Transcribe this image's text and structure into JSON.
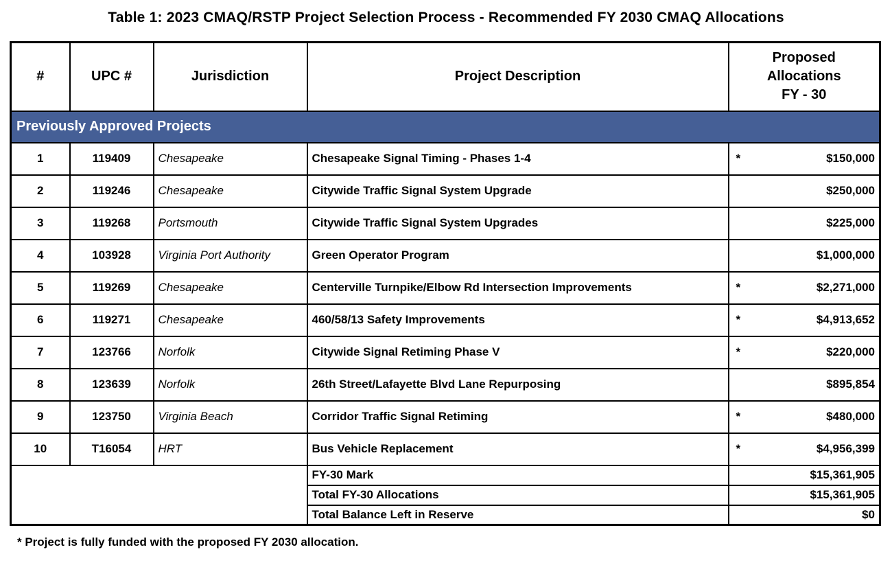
{
  "title": "Table 1: 2023 CMAQ/RSTP Project Selection Process - Recommended FY 2030 CMAQ Allocations",
  "colors": {
    "section_band_bg": "#455F96",
    "section_band_text": "#FFFFFF",
    "table_border": "#000000",
    "page_bg": "#FFFFFF"
  },
  "table": {
    "columns": {
      "num": "#",
      "upc": "UPC #",
      "jurisdiction": "Jurisdiction",
      "description": "Project Description",
      "alloc_line1": "Proposed",
      "alloc_line2": "Allocations",
      "alloc_line3": "FY - 30"
    },
    "section_header": "Previously Approved Projects",
    "rows": [
      {
        "num": "1",
        "upc": "119409",
        "jurisdiction": "Chesapeake",
        "description": "Chesapeake Signal Timing - Phases 1-4",
        "note": "*",
        "amount": "$150,000"
      },
      {
        "num": "2",
        "upc": "119246",
        "jurisdiction": "Chesapeake",
        "description": "Citywide Traffic Signal System Upgrade",
        "note": "",
        "amount": "$250,000"
      },
      {
        "num": "3",
        "upc": "119268",
        "jurisdiction": "Portsmouth",
        "description": "Citywide Traffic Signal System Upgrades",
        "note": "",
        "amount": "$225,000"
      },
      {
        "num": "4",
        "upc": "103928",
        "jurisdiction": "Virginia Port Authority",
        "description": "Green Operator Program",
        "note": "",
        "amount": "$1,000,000"
      },
      {
        "num": "5",
        "upc": "119269",
        "jurisdiction": "Chesapeake",
        "description": "Centerville Turnpike/Elbow Rd Intersection Improvements",
        "note": "*",
        "amount": "$2,271,000"
      },
      {
        "num": "6",
        "upc": "119271",
        "jurisdiction": "Chesapeake",
        "description": "460/58/13 Safety Improvements",
        "note": "*",
        "amount": "$4,913,652"
      },
      {
        "num": "7",
        "upc": "123766",
        "jurisdiction": "Norfolk",
        "description": "Citywide Signal Retiming Phase V",
        "note": "*",
        "amount": "$220,000"
      },
      {
        "num": "8",
        "upc": "123639",
        "jurisdiction": "Norfolk",
        "description": "26th Street/Lafayette Blvd Lane Repurposing",
        "note": "",
        "amount": "$895,854"
      },
      {
        "num": "9",
        "upc": "123750",
        "jurisdiction": "Virginia Beach",
        "description": "Corridor Traffic Signal Retiming",
        "note": "*",
        "amount": "$480,000"
      },
      {
        "num": "10",
        "upc": "T16054",
        "jurisdiction": "HRT",
        "description": "Bus Vehicle Replacement",
        "note": "*",
        "amount": "$4,956,399"
      }
    ],
    "summary_rows": [
      {
        "label": "FY-30 Mark",
        "value": "$15,361,905"
      },
      {
        "label": "Total FY-30 Allocations",
        "value": "$15,361,905"
      },
      {
        "label": "Total Balance Left in Reserve",
        "value": "$0"
      }
    ]
  },
  "footnote": "* Project is fully funded with the proposed FY 2030 allocation."
}
